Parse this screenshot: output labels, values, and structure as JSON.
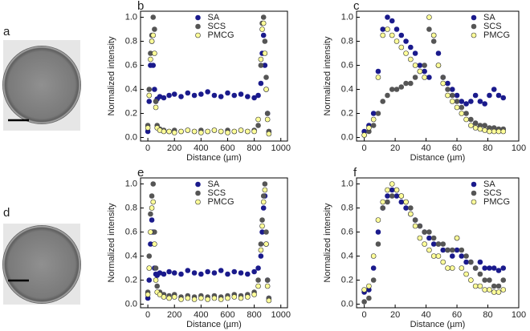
{
  "panel_labels": [
    "a",
    "d"
  ],
  "chart_data": [
    {
      "type": "scatter",
      "label": "b",
      "xlabel": "Distance (µm)",
      "ylabel": "Normalized intensity",
      "legend": "upper center",
      "xlim": [
        -55,
        1050
      ],
      "ylim": [
        -0.03,
        1.05
      ],
      "xticks": [
        0,
        200,
        400,
        600,
        800,
        1000
      ],
      "yticks": [
        {
          "value": 0,
          "label": "0.0"
        },
        0.2,
        0.4,
        0.6,
        0.8,
        {
          "value": 1,
          "label": "1.0"
        }
      ],
      "x": [
        0,
        10,
        20,
        30,
        40,
        50,
        60,
        70,
        90,
        120,
        160,
        200,
        250,
        300,
        350,
        400,
        450,
        500,
        550,
        600,
        650,
        700,
        750,
        800,
        830,
        850,
        860,
        870,
        880,
        890,
        900,
        910
      ],
      "series": [
        {
          "name": "SA",
          "color": "#1a1a8c",
          "values": [
            0.05,
            0.3,
            0.6,
            0.8,
            0.6,
            0.4,
            0.3,
            0.32,
            0.34,
            0.33,
            0.35,
            0.36,
            0.34,
            0.37,
            0.35,
            0.36,
            0.38,
            0.35,
            0.34,
            0.37,
            0.35,
            0.36,
            0.34,
            0.33,
            0.35,
            0.45,
            0.7,
            0.85,
            0.6,
            0.4,
            0.2,
            0.05
          ]
        },
        {
          "name": "SCS",
          "color": "#555555",
          "values": [
            0.1,
            0.4,
            0.7,
            0.85,
            1.0,
            0.9,
            0.3,
            0.1,
            0.07,
            0.06,
            0.05,
            0.06,
            0.05,
            0.06,
            0.05,
            0.06,
            0.05,
            0.06,
            0.05,
            0.06,
            0.05,
            0.06,
            0.05,
            0.06,
            0.1,
            0.6,
            0.95,
            1.0,
            0.8,
            0.5,
            0.2,
            0.05
          ]
        },
        {
          "name": "PMCG",
          "color": "#ffff99",
          "values": [
            0.08,
            0.35,
            0.65,
            0.8,
            0.85,
            0.7,
            0.25,
            0.08,
            0.06,
            0.05,
            0.05,
            0.04,
            0.05,
            0.06,
            0.05,
            0.04,
            0.05,
            0.06,
            0.05,
            0.04,
            0.05,
            0.06,
            0.05,
            0.05,
            0.15,
            0.65,
            0.9,
            0.95,
            0.7,
            0.4,
            0.15,
            0.03
          ]
        }
      ]
    },
    {
      "type": "scatter",
      "label": "c",
      "xlabel": "Distance (µm)",
      "ylabel": "Normalized intensity",
      "legend": "upper right",
      "xlim": [
        -5,
        100
      ],
      "ylim": [
        -0.03,
        1.05
      ],
      "xticks": [
        0,
        20,
        40,
        60,
        80,
        100
      ],
      "yticks": [
        {
          "value": 0,
          "label": "0.0"
        },
        0.2,
        0.4,
        0.6,
        0.8,
        {
          "value": 1,
          "label": "1.0"
        }
      ],
      "x": [
        0,
        3,
        6,
        9,
        12,
        15,
        18,
        21,
        24,
        27,
        30,
        33,
        36,
        39,
        42,
        45,
        48,
        51,
        54,
        57,
        60,
        63,
        66,
        69,
        72,
        75,
        78,
        81,
        84,
        87,
        90
      ],
      "series": [
        {
          "name": "SA",
          "color": "#1a1a8c",
          "values": [
            0.05,
            0.1,
            0.2,
            0.55,
            0.9,
            1.0,
            0.97,
            0.9,
            0.85,
            0.8,
            0.75,
            0.7,
            0.6,
            0.55,
            0.5,
            0.85,
            0.7,
            0.5,
            0.45,
            0.4,
            0.35,
            0.3,
            0.28,
            0.3,
            0.35,
            0.3,
            0.28,
            0.35,
            0.4,
            0.35,
            0.33
          ]
        },
        {
          "name": "SCS",
          "color": "#555555",
          "values": [
            0.02,
            0.05,
            0.1,
            0.2,
            0.3,
            0.35,
            0.4,
            0.4,
            0.42,
            0.45,
            0.45,
            0.5,
            0.55,
            0.6,
            0.9,
            0.8,
            0.6,
            0.5,
            0.4,
            0.35,
            0.3,
            0.25,
            0.2,
            0.15,
            0.12,
            0.1,
            0.1,
            0.08,
            0.08,
            0.07,
            0.07
          ]
        },
        {
          "name": "PMCG",
          "color": "#ffff99",
          "values": [
            0.02,
            0.08,
            0.15,
            0.5,
            0.85,
            0.9,
            0.85,
            0.8,
            0.75,
            0.7,
            0.65,
            0.6,
            0.55,
            0.5,
            1.0,
            0.85,
            0.6,
            0.45,
            0.35,
            0.3,
            0.25,
            0.2,
            0.15,
            0.1,
            0.08,
            0.07,
            0.06,
            0.05,
            0.05,
            0.05,
            0.05
          ]
        }
      ]
    },
    {
      "type": "scatter",
      "label": "e",
      "xlabel": "Distance (µm)",
      "ylabel": "Normalized intensity",
      "legend": "upper center",
      "xlim": [
        -55,
        1050
      ],
      "ylim": [
        -0.03,
        1.05
      ],
      "xticks": [
        0,
        200,
        400,
        600,
        800,
        1000
      ],
      "yticks": [
        {
          "value": 0,
          "label": "0.0"
        },
        0.2,
        0.4,
        0.6,
        0.8,
        {
          "value": 1,
          "label": "1.0"
        }
      ],
      "x": [
        0,
        10,
        20,
        30,
        40,
        50,
        60,
        70,
        90,
        120,
        160,
        200,
        250,
        300,
        350,
        400,
        450,
        500,
        550,
        600,
        650,
        700,
        750,
        800,
        830,
        850,
        860,
        870,
        880,
        890,
        900,
        910
      ],
      "series": [
        {
          "name": "SA",
          "color": "#1a1a8c",
          "values": [
            0.05,
            0.2,
            0.5,
            0.7,
            0.6,
            0.3,
            0.25,
            0.24,
            0.26,
            0.25,
            0.27,
            0.26,
            0.25,
            0.28,
            0.26,
            0.25,
            0.27,
            0.26,
            0.28,
            0.25,
            0.27,
            0.26,
            0.25,
            0.27,
            0.3,
            0.4,
            0.6,
            0.8,
            0.9,
            0.5,
            0.2,
            0.05
          ]
        },
        {
          "name": "SCS",
          "color": "#555555",
          "values": [
            0.1,
            0.4,
            0.75,
            0.9,
            1.0,
            0.6,
            0.3,
            0.15,
            0.1,
            0.08,
            0.07,
            0.08,
            0.06,
            0.07,
            0.06,
            0.07,
            0.06,
            0.07,
            0.06,
            0.07,
            0.08,
            0.07,
            0.08,
            0.1,
            0.2,
            0.5,
            0.7,
            0.9,
            1.0,
            0.6,
            0.2,
            0.05
          ]
        },
        {
          "name": "PMCG",
          "color": "#ffff99",
          "values": [
            0.08,
            0.3,
            0.6,
            0.8,
            0.85,
            0.5,
            0.2,
            0.1,
            0.08,
            0.06,
            0.05,
            0.06,
            0.04,
            0.05,
            0.04,
            0.05,
            0.04,
            0.05,
            0.04,
            0.05,
            0.06,
            0.05,
            0.06,
            0.08,
            0.15,
            0.45,
            0.65,
            0.85,
            0.95,
            0.5,
            0.15,
            0.03
          ]
        }
      ]
    },
    {
      "type": "scatter",
      "label": "f",
      "xlabel": "Distance (µm)",
      "ylabel": "Normalized intensity",
      "legend": "upper right",
      "xlim": [
        -5,
        100
      ],
      "ylim": [
        -0.03,
        1.05
      ],
      "xticks": [
        0,
        20,
        40,
        60,
        80,
        100
      ],
      "yticks": [
        {
          "value": 0,
          "label": "0.0"
        },
        0.2,
        0.4,
        0.6,
        0.8,
        {
          "value": 1,
          "label": "1.0"
        }
      ],
      "x": [
        0,
        3,
        6,
        9,
        12,
        15,
        18,
        21,
        24,
        27,
        30,
        33,
        36,
        39,
        42,
        45,
        48,
        51,
        54,
        57,
        60,
        63,
        66,
        69,
        72,
        75,
        78,
        81,
        84,
        87,
        90
      ],
      "series": [
        {
          "name": "SA",
          "color": "#1a1a8c",
          "values": [
            0.1,
            0.12,
            0.3,
            0.6,
            0.8,
            0.9,
            0.95,
            0.9,
            0.85,
            0.8,
            0.75,
            0.7,
            0.65,
            0.6,
            0.55,
            0.5,
            0.5,
            0.45,
            0.45,
            0.4,
            0.45,
            0.4,
            0.35,
            0.35,
            0.3,
            0.35,
            0.3,
            0.3,
            0.3,
            0.28,
            0.3
          ]
        },
        {
          "name": "SCS",
          "color": "#555555",
          "values": [
            0.02,
            0.05,
            0.2,
            0.5,
            0.8,
            0.85,
            0.9,
            0.95,
            0.9,
            0.85,
            0.8,
            0.7,
            0.65,
            0.6,
            0.6,
            0.55,
            0.5,
            0.5,
            0.45,
            0.45,
            0.55,
            0.45,
            0.4,
            0.35,
            0.3,
            0.25,
            0.2,
            0.2,
            0.15,
            0.15,
            0.2
          ]
        },
        {
          "name": "PMCG",
          "color": "#ffff99",
          "values": [
            0.12,
            0.15,
            0.4,
            0.7,
            0.85,
            0.95,
            1.0,
            0.95,
            0.9,
            0.85,
            0.75,
            0.65,
            0.55,
            0.5,
            0.45,
            0.4,
            0.4,
            0.35,
            0.3,
            0.3,
            0.55,
            0.3,
            0.25,
            0.2,
            0.15,
            0.15,
            0.12,
            0.12,
            0.1,
            0.1,
            0.12
          ]
        }
      ]
    }
  ]
}
